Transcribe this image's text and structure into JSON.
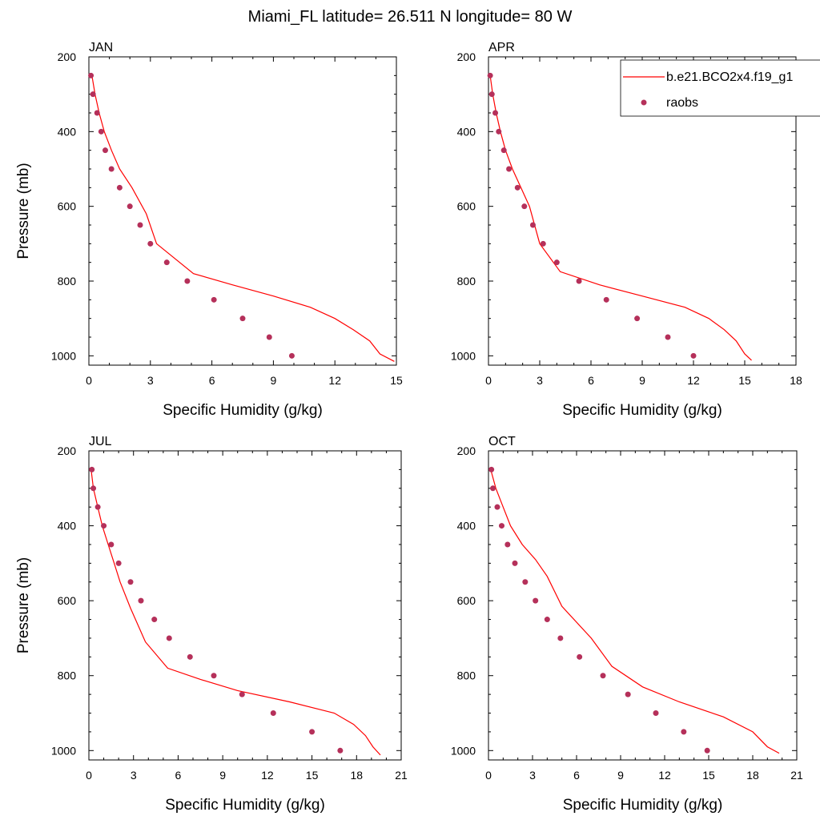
{
  "figure": {
    "title": "Miami_FL  latitude= 26.511 N longitude= 80 W"
  },
  "legend": {
    "model_label": "b.e21.BCO2x4.f19_g1",
    "obs_label": "raobs",
    "placement": "top-right of APR panel"
  },
  "colors": {
    "model_line": "#ff0000",
    "obs_marker": "#b5305a",
    "axis": "#000000"
  },
  "chart_data": [
    {
      "type": "line",
      "panel_label": "JAN",
      "xlabel": "Specific Humidity (g/kg)",
      "ylabel": "Pressure (mb)",
      "xlim": [
        0,
        15
      ],
      "ylim": [
        1025,
        200
      ],
      "y_reversed": true,
      "xticks": [
        0,
        3,
        6,
        9,
        12,
        15
      ],
      "yticks": [
        200,
        400,
        600,
        800,
        1000
      ],
      "grid": false,
      "series": [
        {
          "name": "b.e21.BCO2x4.f19_g1",
          "kind": "line",
          "x": [
            0.15,
            0.3,
            0.5,
            0.75,
            1.1,
            1.5,
            2.1,
            2.8,
            3.3,
            5.1,
            7.0,
            9.0,
            10.8,
            12.0,
            12.9,
            13.7,
            14.2,
            14.9
          ],
          "y": [
            250,
            300,
            350,
            400,
            450,
            500,
            550,
            620,
            700,
            780,
            810,
            840,
            870,
            900,
            930,
            960,
            995,
            1015
          ]
        },
        {
          "name": "raobs",
          "kind": "marker",
          "x": [
            0.1,
            0.2,
            0.4,
            0.6,
            0.8,
            1.1,
            1.5,
            2.0,
            2.5,
            3.0,
            3.8,
            4.8,
            6.1,
            7.5,
            8.8,
            9.9
          ],
          "y": [
            250,
            300,
            350,
            400,
            450,
            500,
            550,
            600,
            650,
            700,
            750,
            800,
            850,
            900,
            950,
            1000
          ]
        }
      ]
    },
    {
      "type": "line",
      "panel_label": "APR",
      "xlabel": "Specific Humidity (g/kg)",
      "ylabel": "",
      "xlim": [
        0,
        18
      ],
      "ylim": [
        1025,
        200
      ],
      "y_reversed": true,
      "xticks": [
        0,
        3,
        6,
        9,
        12,
        15,
        18
      ],
      "yticks": [
        200,
        400,
        600,
        800,
        1000
      ],
      "grid": false,
      "series": [
        {
          "name": "b.e21.BCO2x4.f19_g1",
          "kind": "line",
          "x": [
            0.1,
            0.25,
            0.45,
            0.7,
            1.0,
            1.4,
            1.9,
            2.4,
            3.0,
            4.2,
            6.5,
            9.0,
            11.5,
            12.9,
            13.8,
            14.5,
            15.0,
            15.4
          ],
          "y": [
            250,
            300,
            350,
            400,
            450,
            500,
            550,
            600,
            700,
            775,
            810,
            840,
            870,
            900,
            930,
            960,
            995,
            1012
          ]
        },
        {
          "name": "raobs",
          "kind": "marker",
          "x": [
            0.1,
            0.2,
            0.4,
            0.6,
            0.9,
            1.2,
            1.7,
            2.1,
            2.6,
            3.2,
            4.0,
            5.3,
            6.9,
            8.7,
            10.5,
            12.0
          ],
          "y": [
            250,
            300,
            350,
            400,
            450,
            500,
            550,
            600,
            650,
            700,
            750,
            800,
            850,
            900,
            950,
            1000
          ]
        }
      ]
    },
    {
      "type": "line",
      "panel_label": "JUL",
      "xlabel": "Specific Humidity (g/kg)",
      "ylabel": "Pressure (mb)",
      "xlim": [
        0,
        21
      ],
      "ylim": [
        1025,
        200
      ],
      "y_reversed": true,
      "xticks": [
        0,
        3,
        6,
        9,
        12,
        15,
        18,
        21
      ],
      "yticks": [
        200,
        400,
        600,
        800,
        1000
      ],
      "grid": false,
      "series": [
        {
          "name": "b.e21.BCO2x4.f19_g1",
          "kind": "line",
          "x": [
            0.15,
            0.3,
            0.6,
            0.9,
            1.3,
            1.7,
            2.1,
            2.8,
            3.8,
            5.3,
            7.5,
            10.0,
            13.5,
            16.5,
            17.8,
            18.6,
            19.1,
            19.6
          ],
          "y": [
            250,
            300,
            350,
            400,
            450,
            500,
            550,
            620,
            710,
            780,
            810,
            840,
            870,
            900,
            930,
            960,
            990,
            1012
          ]
        },
        {
          "name": "raobs",
          "kind": "marker",
          "x": [
            0.2,
            0.3,
            0.6,
            1.0,
            1.5,
            2.0,
            2.8,
            3.5,
            4.4,
            5.4,
            6.8,
            8.4,
            10.3,
            12.4,
            15.0,
            16.9
          ],
          "y": [
            250,
            300,
            350,
            400,
            450,
            500,
            550,
            600,
            650,
            700,
            750,
            800,
            850,
            900,
            950,
            1000
          ]
        }
      ]
    },
    {
      "type": "line",
      "panel_label": "OCT",
      "xlabel": "Specific Humidity (g/kg)",
      "ylabel": "",
      "xlim": [
        0,
        21
      ],
      "ylim": [
        1025,
        200
      ],
      "y_reversed": true,
      "xticks": [
        0,
        3,
        6,
        9,
        12,
        15,
        18,
        21
      ],
      "yticks": [
        200,
        400,
        600,
        800,
        1000
      ],
      "grid": false,
      "series": [
        {
          "name": "b.e21.BCO2x4.f19_g1",
          "kind": "line",
          "x": [
            0.15,
            0.5,
            1.0,
            1.5,
            2.3,
            3.2,
            4.0,
            5.0,
            7.0,
            8.4,
            10.5,
            13.0,
            16.0,
            18.0,
            19.0,
            19.8
          ],
          "y": [
            250,
            300,
            350,
            400,
            450,
            490,
            535,
            615,
            700,
            775,
            830,
            870,
            910,
            950,
            990,
            1007
          ]
        },
        {
          "name": "raobs",
          "kind": "marker",
          "x": [
            0.2,
            0.3,
            0.6,
            0.9,
            1.3,
            1.8,
            2.5,
            3.2,
            4.0,
            4.9,
            6.2,
            7.8,
            9.5,
            11.4,
            13.3,
            14.9
          ],
          "y": [
            250,
            300,
            350,
            400,
            450,
            500,
            550,
            600,
            650,
            700,
            750,
            800,
            850,
            900,
            950,
            1000
          ]
        }
      ]
    }
  ]
}
